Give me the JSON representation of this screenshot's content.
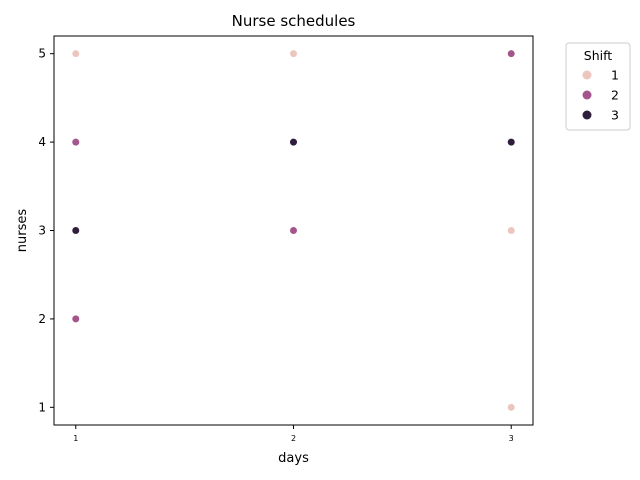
{
  "chart_data": {
    "type": "scatter",
    "title": "Nurse schedules",
    "xlabel": "days",
    "ylabel": "nurses",
    "x_ticks": [
      1,
      2,
      3
    ],
    "y_ticks": [
      1,
      2,
      3,
      4,
      5
    ],
    "xlim": [
      0.9,
      3.1
    ],
    "ylim": [
      0.8,
      5.2
    ],
    "grid": false,
    "legend": {
      "title": "Shift",
      "placement": "outside-top-right",
      "entries": [
        {
          "label": "1",
          "color": "#ecc6be"
        },
        {
          "label": "2",
          "color": "#a4568c"
        },
        {
          "label": "3",
          "color": "#2e1e3b"
        }
      ]
    },
    "series": [
      {
        "name": "1",
        "color": "#ecc6be",
        "points": [
          [
            1,
            5
          ],
          [
            2,
            5
          ],
          [
            3,
            3
          ],
          [
            3,
            1
          ]
        ]
      },
      {
        "name": "2",
        "color": "#a4568c",
        "points": [
          [
            1,
            4
          ],
          [
            1,
            2
          ],
          [
            2,
            3
          ],
          [
            3,
            5
          ]
        ]
      },
      {
        "name": "3",
        "color": "#2e1e3b",
        "points": [
          [
            1,
            3
          ],
          [
            2,
            4
          ],
          [
            3,
            4
          ]
        ]
      }
    ]
  }
}
